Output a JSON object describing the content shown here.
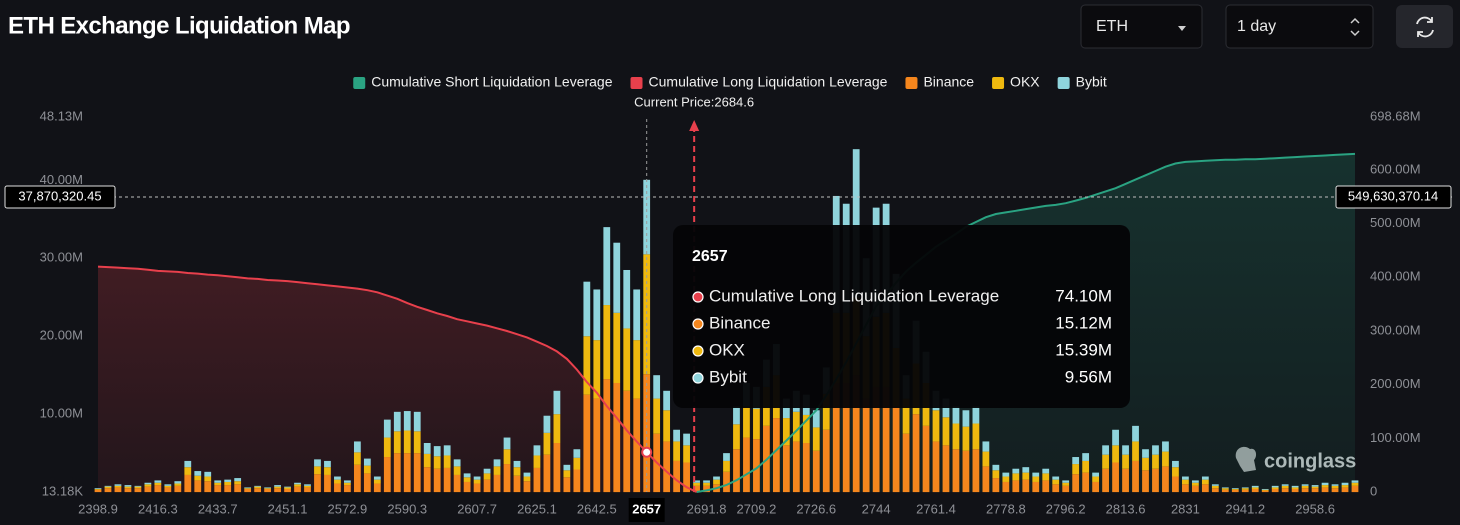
{
  "chart_data": {
    "type": "bar",
    "title": "ETH Exchange Liquidation Map",
    "stacked": true,
    "categories": [
      "2398.9",
      null,
      null,
      null,
      null,
      null,
      "2416.3",
      null,
      null,
      null,
      null,
      null,
      "2433.7",
      null,
      null,
      null,
      null,
      null,
      null,
      "2451.1",
      null,
      null,
      null,
      null,
      null,
      "2572.9",
      null,
      null,
      null,
      null,
      null,
      "2590.3",
      null,
      null,
      null,
      null,
      null,
      null,
      "2607.7",
      null,
      null,
      null,
      null,
      null,
      "2625.1",
      null,
      null,
      null,
      null,
      null,
      "2642.5",
      null,
      null,
      null,
      null,
      "2657",
      null,
      null,
      null,
      null,
      null,
      "2691.8",
      null,
      null,
      null,
      null,
      "2709.2",
      null,
      null,
      null,
      null,
      null,
      "2726.6",
      null,
      null,
      null,
      null,
      null,
      "2744",
      null,
      null,
      null,
      null,
      null,
      "2761.4",
      null,
      null,
      null,
      null,
      null,
      null,
      "2778.8",
      null,
      null,
      null,
      null,
      null,
      "2796.2",
      null,
      null,
      null,
      null,
      null,
      "2813.6",
      null,
      null,
      null,
      null,
      null,
      "2831",
      null,
      null,
      null,
      null,
      null,
      "2941.2",
      null,
      null,
      null,
      null,
      null,
      null,
      "2958.6",
      null,
      null,
      null,
      null
    ],
    "series": [
      {
        "name": "Cumulative Short Liquidation Leverage",
        "type": "line",
        "axis": "y2",
        "color": "#2aa382",
        "values": [
          null,
          null,
          null,
          null,
          null,
          null,
          null,
          null,
          null,
          null,
          null,
          null,
          null,
          null,
          null,
          null,
          null,
          null,
          null,
          null,
          null,
          null,
          null,
          null,
          null,
          null,
          null,
          null,
          null,
          null,
          null,
          null,
          null,
          null,
          null,
          null,
          null,
          null,
          null,
          null,
          null,
          null,
          null,
          null,
          null,
          null,
          null,
          null,
          null,
          null,
          null,
          null,
          null,
          null,
          null,
          null,
          null,
          null,
          null,
          null,
          0,
          3,
          7,
          13,
          22,
          33,
          44,
          60,
          78,
          96,
          114,
          133,
          152,
          180,
          210,
          242,
          277,
          312,
          346,
          368,
          390,
          411,
          427,
          442,
          457,
          469,
          481,
          494,
          503,
          512,
          518,
          521,
          524,
          527,
          530,
          533,
          535,
          538,
          543,
          548,
          554,
          560,
          566,
          574,
          582,
          590,
          598,
          606,
          612,
          615,
          616,
          617,
          618,
          619,
          619,
          620,
          620,
          621,
          622,
          623,
          624,
          625,
          626,
          627,
          628,
          629,
          630
        ]
      },
      {
        "name": "Cumulative Long Liquidation Leverage",
        "type": "line",
        "axis": "y2",
        "color": "#e8404c",
        "values": [
          420,
          419,
          418,
          417,
          416,
          414,
          412,
          411,
          410,
          408,
          407,
          405,
          404,
          402,
          400,
          398,
          397,
          395,
          394,
          393,
          391,
          389,
          387,
          385,
          383,
          381,
          379,
          376,
          372,
          366,
          360,
          352,
          345,
          339,
          333,
          328,
          322,
          318,
          314,
          310,
          305,
          300,
          294,
          288,
          280,
          272,
          262,
          248,
          228,
          205,
          185,
          160,
          138,
          115,
          94,
          74.1,
          55,
          38,
          22,
          9,
          0,
          null,
          null,
          null,
          null,
          null,
          null,
          null,
          null,
          null,
          null,
          null,
          null,
          null,
          null,
          null,
          null,
          null,
          null,
          null,
          null,
          null,
          null,
          null,
          null,
          null,
          null,
          null,
          null,
          null,
          null,
          null,
          null,
          null,
          null,
          null,
          null,
          null,
          null,
          null,
          null,
          null,
          null,
          null,
          null,
          null,
          null,
          null,
          null,
          null,
          null,
          null,
          null,
          null,
          null,
          null,
          null,
          null,
          null,
          null,
          null,
          null,
          null,
          null,
          null,
          null,
          null
        ]
      },
      {
        "name": "Binance",
        "type": "bar",
        "color": "#f5861d",
        "values": [
          0.3,
          0.5,
          0.6,
          0.5,
          0.5,
          0.7,
          0.9,
          0.6,
          0.8,
          2.2,
          1.5,
          1.4,
          0.9,
          0.9,
          1.0,
          0.4,
          0.5,
          0.4,
          0.5,
          0.4,
          0.7,
          0.6,
          2.3,
          2.2,
          1.1,
          0.9,
          3.5,
          2.4,
          1.1,
          4.5,
          5.0,
          5.0,
          5.0,
          3.2,
          3.0,
          3.1,
          2.2,
          1.3,
          1.1,
          1.6,
          2.2,
          3.6,
          2.1,
          1.4,
          3.1,
          4.8,
          6.3,
          1.9,
          2.9,
          12.5,
          12.0,
          14.5,
          14.0,
          13.0,
          12.0,
          15.12,
          7.5,
          6.5,
          4.0,
          3.8,
          0.8,
          0.8,
          1.0,
          2.6,
          5.5,
          7.0,
          6.8,
          8.5,
          9.5,
          6.0,
          6.5,
          6.3,
          5.3,
          8.0,
          14.0,
          14.0,
          15.0,
          12.0,
          13.5,
          13.5,
          11.0,
          7.5,
          10.0,
          8.5,
          6.5,
          6.0,
          5.5,
          5.3,
          5.5,
          3.3,
          1.8,
          1.3,
          1.5,
          1.6,
          1.3,
          1.5,
          1.0,
          0.8,
          2.3,
          2.5,
          1.3,
          3.0,
          3.8,
          3.0,
          4.0,
          2.8,
          3.0,
          3.3,
          2.0,
          1.0,
          0.8,
          1.0,
          0.5,
          0.3,
          0.3,
          0.3,
          0.4,
          0.2,
          0.4,
          0.5,
          0.4,
          0.5,
          0.5,
          0.6,
          0.5,
          0.6,
          0.8
        ]
      },
      {
        "name": "OKX",
        "type": "bar",
        "color": "#efb90f",
        "values": [
          0.1,
          0.2,
          0.2,
          0.2,
          0.2,
          0.3,
          0.3,
          0.2,
          0.3,
          1.0,
          0.6,
          0.6,
          0.3,
          0.4,
          0.4,
          0.1,
          0.2,
          0.1,
          0.2,
          0.2,
          0.3,
          0.2,
          1.0,
          1.0,
          0.5,
          0.3,
          1.6,
          1.0,
          0.5,
          2.5,
          2.8,
          2.9,
          2.8,
          1.7,
          1.6,
          1.6,
          1.1,
          0.6,
          0.5,
          0.8,
          1.1,
          1.9,
          1.1,
          0.6,
          1.6,
          2.8,
          3.7,
          0.9,
          1.5,
          7.5,
          7.5,
          9.5,
          9.0,
          8.0,
          7.5,
          15.39,
          4.5,
          4.0,
          2.5,
          2.2,
          0.4,
          0.4,
          0.6,
          1.4,
          3.2,
          4.0,
          3.9,
          5.0,
          5.5,
          3.5,
          3.8,
          3.6,
          3.0,
          4.6,
          9.0,
          9.0,
          10.0,
          8.0,
          9.0,
          9.5,
          7.5,
          4.5,
          6.5,
          5.5,
          4.0,
          3.6,
          3.3,
          3.1,
          3.3,
          1.9,
          1.0,
          0.7,
          0.9,
          0.9,
          0.7,
          0.9,
          0.6,
          0.4,
          1.3,
          1.5,
          0.7,
          1.8,
          2.2,
          1.8,
          2.5,
          1.6,
          1.8,
          1.9,
          1.2,
          0.6,
          0.4,
          0.6,
          0.3,
          0.2,
          0.1,
          0.2,
          0.2,
          0.1,
          0.2,
          0.3,
          0.2,
          0.3,
          0.2,
          0.3,
          0.3,
          0.3,
          0.4
        ]
      },
      {
        "name": "Bybit",
        "type": "bar",
        "color": "#8fd4dc",
        "values": [
          0.1,
          0.1,
          0.2,
          0.2,
          0.1,
          0.2,
          0.3,
          0.2,
          0.3,
          0.8,
          0.6,
          0.6,
          0.3,
          0.3,
          0.4,
          0.1,
          0.1,
          0.1,
          0.2,
          0.1,
          0.2,
          0.2,
          0.9,
          0.8,
          0.4,
          0.3,
          1.4,
          0.9,
          0.4,
          2.3,
          2.5,
          2.5,
          2.5,
          1.4,
          1.3,
          1.3,
          0.9,
          0.5,
          0.4,
          0.6,
          0.9,
          1.5,
          0.8,
          0.5,
          1.3,
          2.2,
          3.0,
          0.7,
          1.1,
          7.0,
          6.5,
          10.0,
          9.0,
          7.5,
          6.5,
          9.56,
          3.0,
          2.5,
          1.5,
          1.5,
          0.3,
          0.3,
          0.4,
          1.0,
          2.3,
          3.0,
          2.8,
          3.5,
          4.0,
          2.5,
          2.7,
          2.6,
          2.2,
          3.4,
          15.0,
          14.0,
          19.0,
          10.0,
          14.0,
          14.0,
          9.5,
          3.0,
          5.5,
          4.0,
          2.5,
          2.4,
          2.2,
          2.1,
          2.2,
          1.3,
          0.7,
          0.5,
          0.6,
          0.7,
          0.5,
          0.6,
          0.4,
          0.3,
          0.9,
          1.0,
          0.5,
          1.2,
          2.0,
          1.2,
          2.0,
          1.1,
          1.2,
          1.3,
          0.8,
          0.4,
          0.3,
          0.4,
          0.2,
          0.1,
          0.1,
          0.1,
          0.2,
          0.1,
          0.2,
          0.2,
          0.2,
          0.2,
          0.2,
          0.3,
          0.2,
          0.3,
          0.3
        ]
      }
    ],
    "ylim": [
      0.01318,
      48.13
    ],
    "yticks": [
      {
        "value": 0.01318,
        "label": "13.18K"
      },
      {
        "value": 10,
        "label": "10.00M"
      },
      {
        "value": 20,
        "label": "20.00M"
      },
      {
        "value": 30,
        "label": "30.00M"
      },
      {
        "value": 40,
        "label": "40.00M"
      },
      {
        "value": 48.13,
        "label": "48.13M"
      }
    ],
    "y2lim": [
      0,
      698.68
    ],
    "y2ticks": [
      0,
      {
        "value": 100,
        "label": "100.00M"
      },
      {
        "value": 200,
        "label": "200.00M"
      },
      {
        "value": 300,
        "label": "300.00M"
      },
      {
        "value": 400,
        "label": "400.00M"
      },
      {
        "value": 500,
        "label": "500.00M"
      },
      {
        "value": 600,
        "label": "600.00M"
      },
      {
        "value": 698.68,
        "label": "698.68M"
      }
    ],
    "legend": "top",
    "current_price": {
      "value": 2684.6,
      "label": "Current Price:2684.6"
    },
    "crosshair": {
      "y": {
        "value": 37.87032045,
        "label": "37,870,320.45"
      },
      "y2": {
        "value": 549.63037014,
        "label": "549,630,370.14"
      }
    },
    "tooltip": {
      "title": "2657",
      "values": [
        "74.10M",
        "15.12M",
        "15.39M",
        "9.56M"
      ]
    }
  },
  "controls": {
    "symbol": "ETH",
    "period": "1 day"
  },
  "watermark": "coinglass"
}
